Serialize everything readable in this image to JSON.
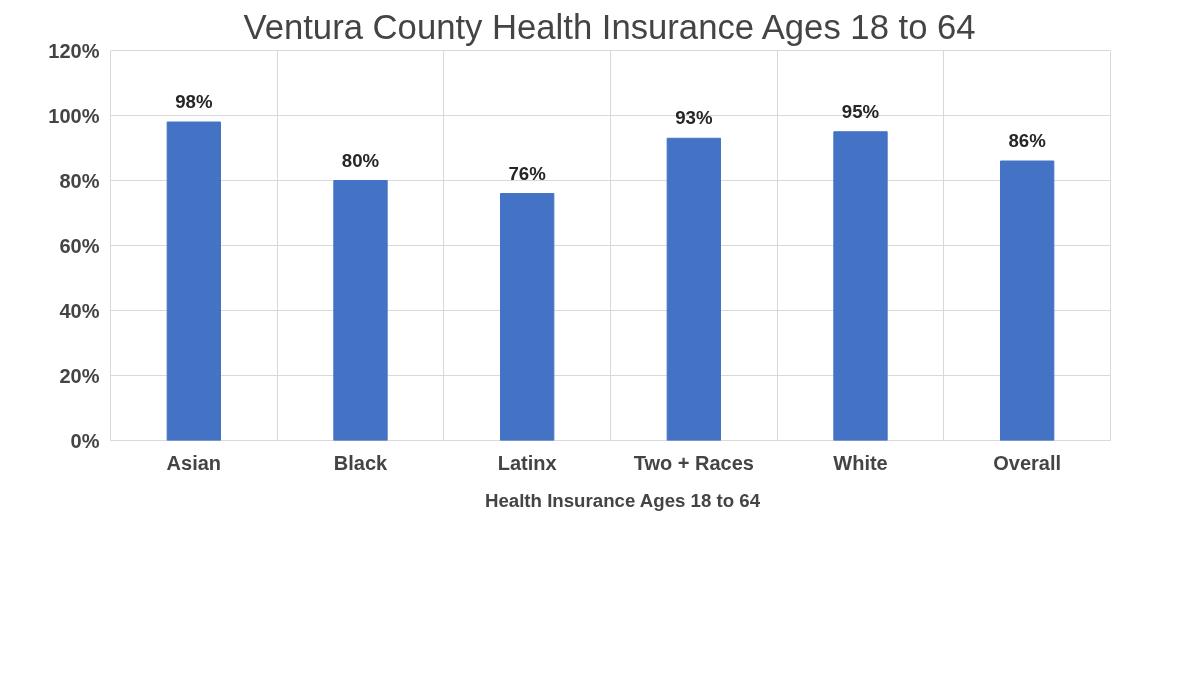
{
  "chart_data": {
    "type": "bar",
    "title": "Ventura County Health Insurance Ages 18 to 64",
    "categories": [
      "Asian",
      "Black",
      "Latinx",
      "Two + Races",
      "White",
      "Overall"
    ],
    "series": [
      {
        "name": "Health Insurance Ages 18 to 64",
        "color": "#4472c4",
        "values": [
          98,
          80,
          76,
          93,
          95,
          86
        ],
        "value_labels": [
          "98%",
          "80%",
          "76%",
          "93%",
          "95%",
          "86%"
        ]
      }
    ],
    "ylim": [
      0,
      120
    ],
    "yticks": [
      {
        "value": 0,
        "label": "0%"
      },
      {
        "value": 20,
        "label": "20%"
      },
      {
        "value": 40,
        "label": "40%"
      },
      {
        "value": 60,
        "label": "60%"
      },
      {
        "value": 80,
        "label": "80%"
      },
      {
        "value": 100,
        "label": "100%"
      },
      {
        "value": 120,
        "label": "120%"
      }
    ],
    "grid": true,
    "legend": "bottom"
  }
}
